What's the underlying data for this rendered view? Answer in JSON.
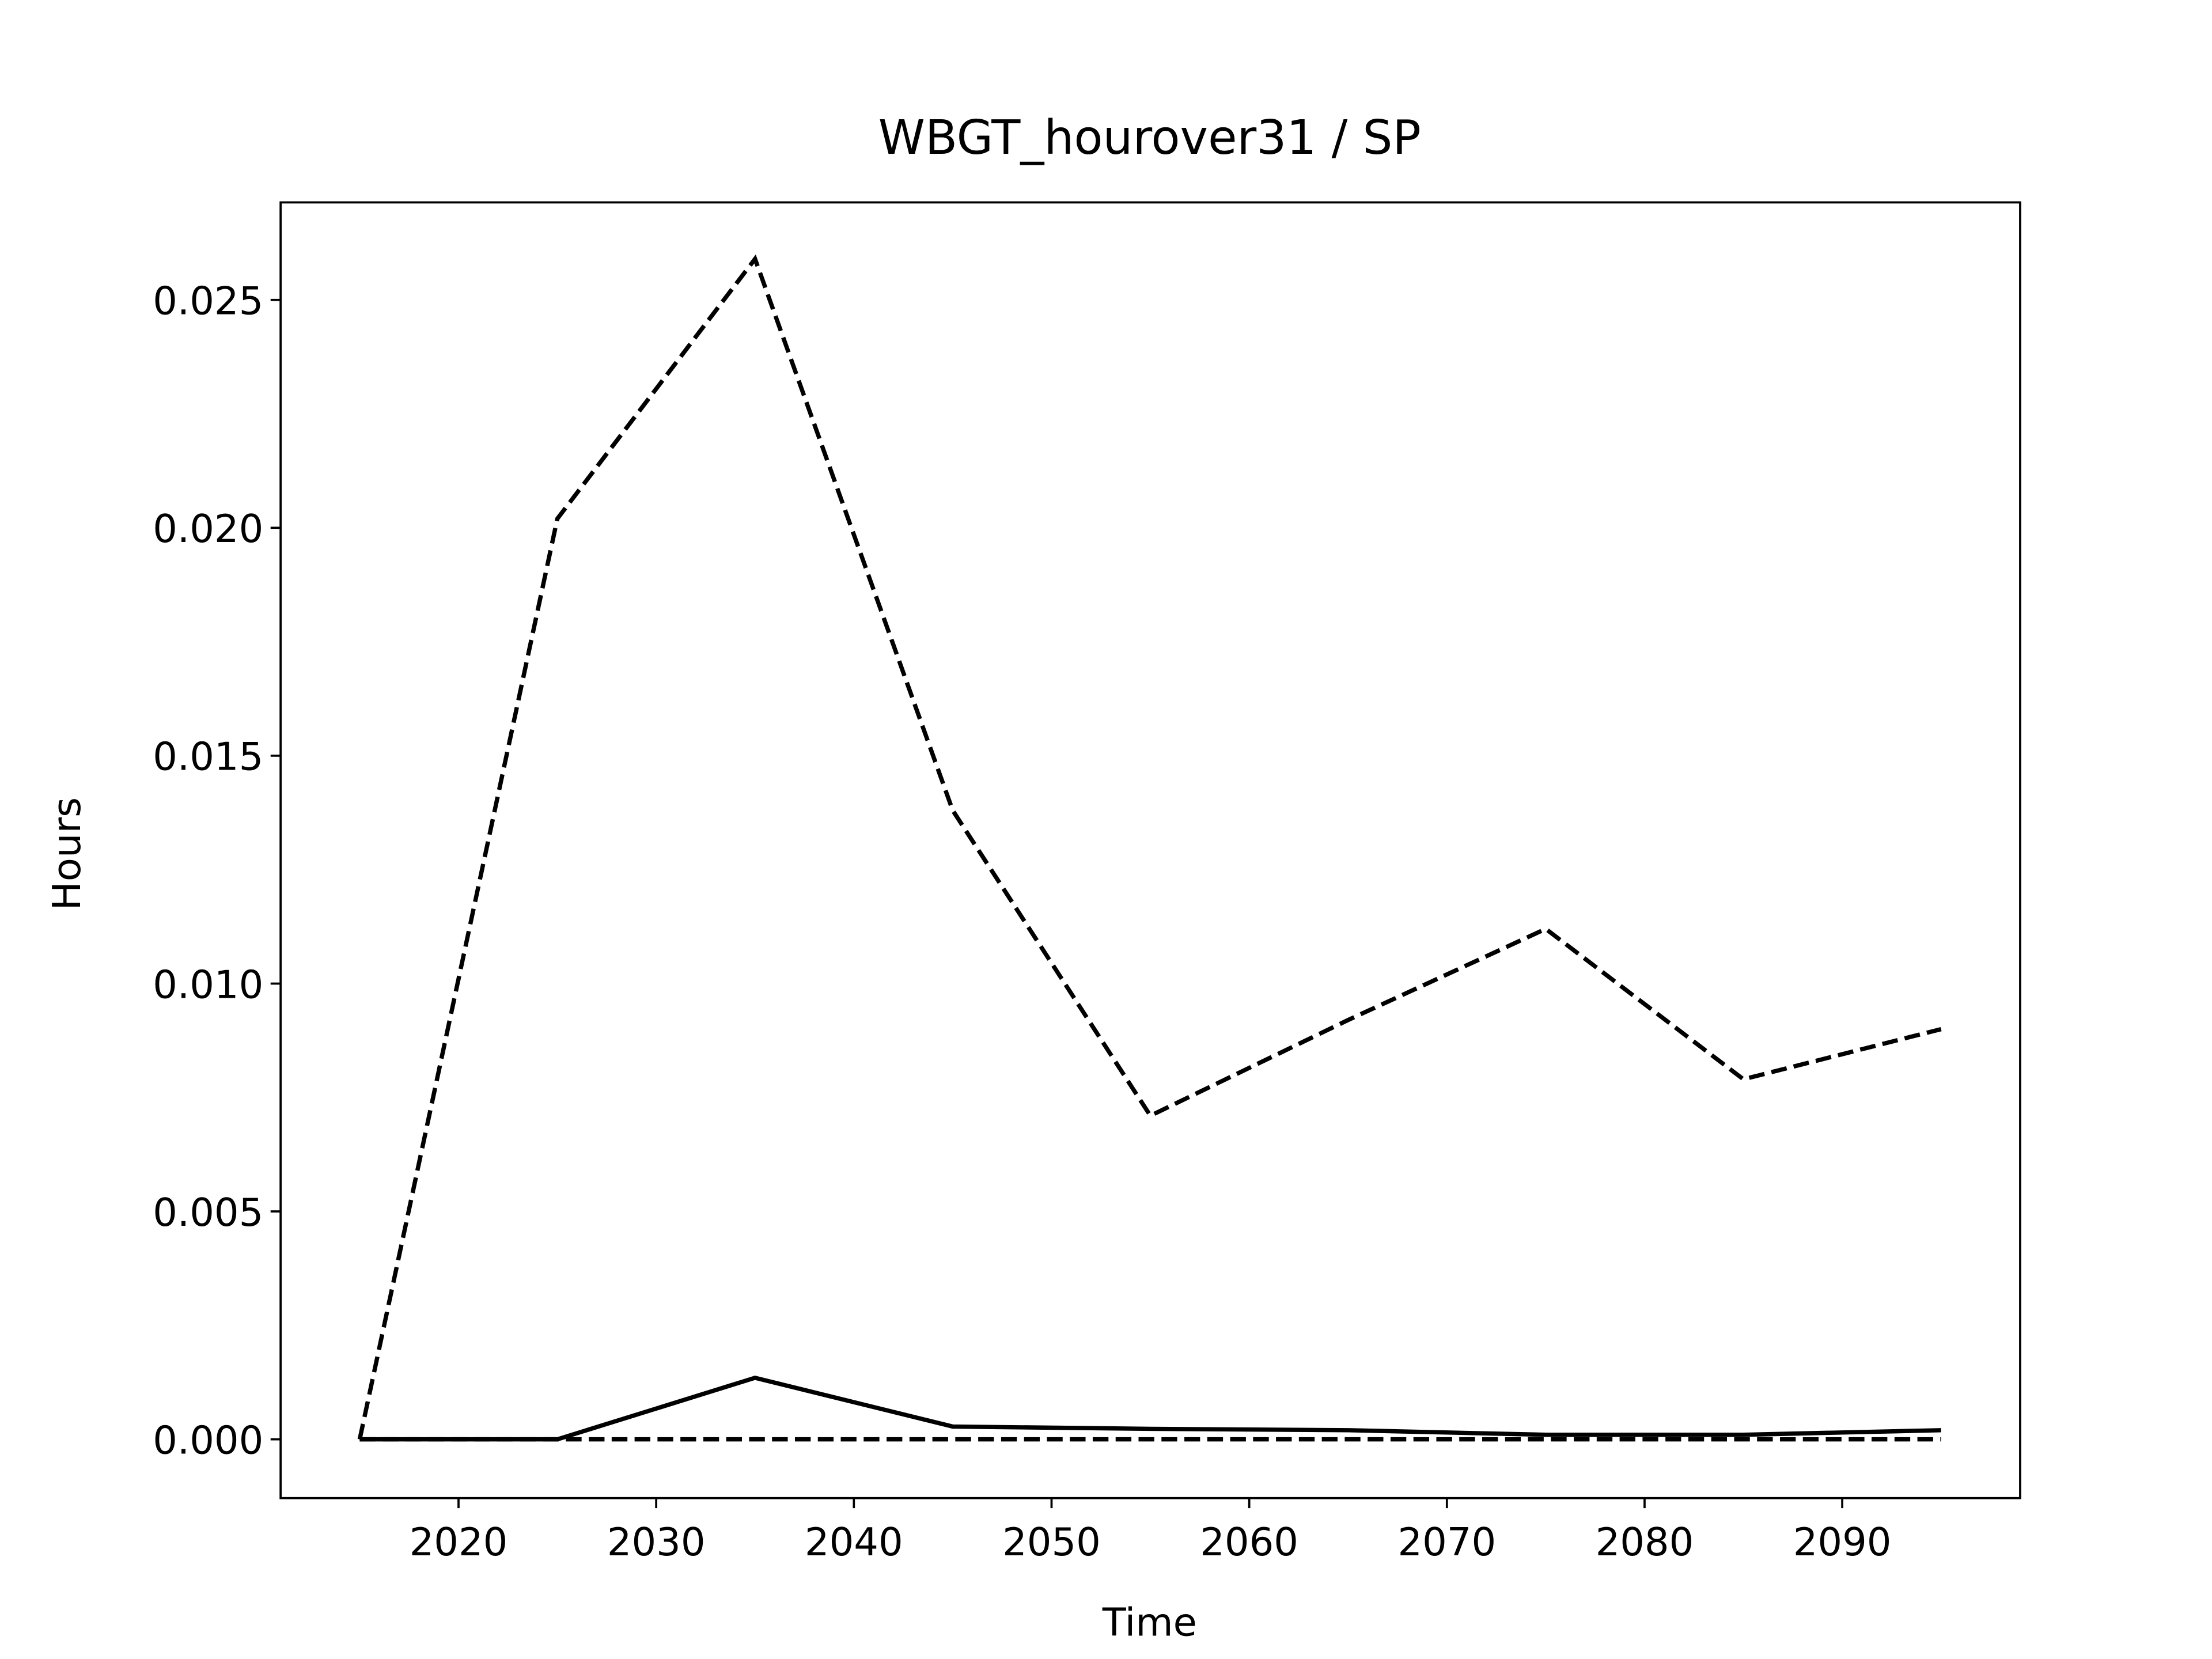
{
  "chart_data": {
    "type": "line",
    "title": "WBGT_hourover31 / SP",
    "xlabel": "Time",
    "ylabel": "Hours",
    "x": [
      2015,
      2025,
      2035,
      2045,
      2055,
      2065,
      2075,
      2085,
      2095
    ],
    "series": [
      {
        "color": "#000000",
        "dash": "dashed",
        "values": [
          0,
          0.0202,
          0.0259,
          0.0138,
          0.0071,
          0.0092,
          0.0112,
          0.0079,
          0.009
        ]
      },
      {
        "color": "#000000",
        "dash": "solid",
        "values": [
          0,
          0,
          0.00135,
          0.00028,
          0.00023,
          0.0002,
          0.0001,
          0.0001,
          0.0002
        ]
      },
      {
        "color": "#000000",
        "dash": "dashed",
        "values": [
          0,
          0,
          0,
          0,
          0,
          0,
          0,
          0,
          0
        ]
      }
    ],
    "xlim": [
      2011,
      2099
    ],
    "ylim": [
      -0.00129,
      0.02714
    ],
    "xticks": [
      2020,
      2030,
      2040,
      2050,
      2060,
      2070,
      2080,
      2090
    ],
    "yticks": [
      {
        "value": 0,
        "label": "0.000"
      },
      {
        "value": 0.005,
        "label": "0.005"
      },
      {
        "value": 0.01,
        "label": "0.010"
      },
      {
        "value": 0.015,
        "label": "0.015"
      },
      {
        "value": 0.02,
        "label": "0.020"
      },
      {
        "value": 0.025,
        "label": "0.025"
      }
    ],
    "grid": false
  }
}
